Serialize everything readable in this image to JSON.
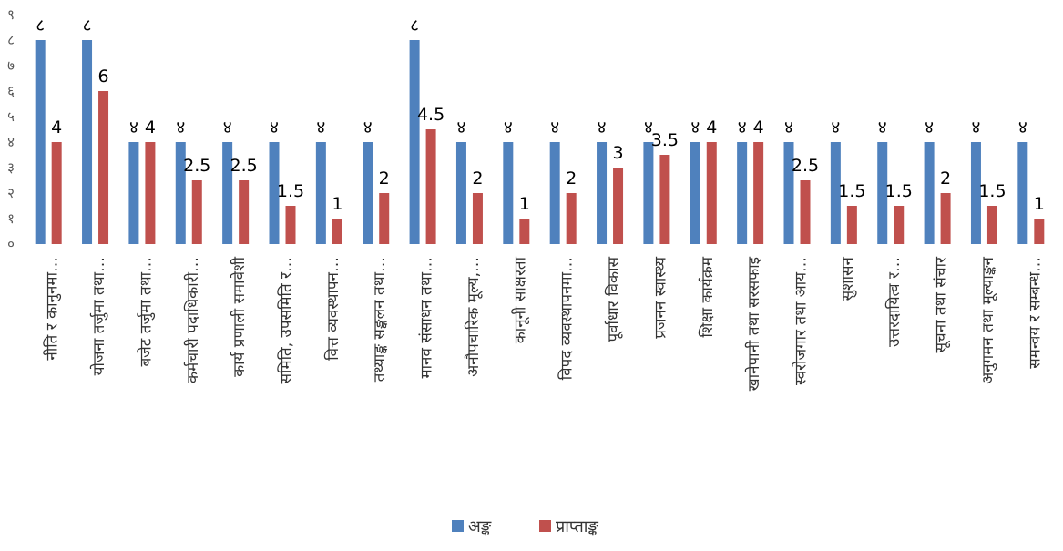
{
  "chart_data": {
    "type": "bar",
    "categories": [
      "नीति र कानुनमा…",
      "योजना तर्जुमा तथा…",
      "बजेट तर्जुमा तथा…",
      "कर्मचारी पदाधिकारी…",
      "कार्य प्रणाली समावेशी",
      "समिति, उपसमिति र…",
      "वित्त व्यवस्थापन…",
      "तथ्याङ्क सङ्कलन तथा…",
      "मानव संसाधन तथा…",
      "अनौपचारिक मूल्य,…",
      "कानूनी साक्षरता",
      "विपद व्यवस्थापनमा…",
      "पूर्वाधार विकास",
      "प्रजनन स्वास्थ्य",
      "शिक्षा कार्यक्रम",
      "खानेपानी तथा सरसफाइ",
      "स्वरोजगार तथा आय…",
      "सुशासन",
      "उत्तरदायित्व र…",
      "सूचना तथा संचार",
      "अनुगमन तथा मूल्याङ्कन",
      "समन्वय र सम्बन्ध…"
    ],
    "series": [
      {
        "name": "अङ्क",
        "color": "#4F81BD",
        "values": [
          8,
          8,
          4,
          4,
          4,
          4,
          4,
          4,
          8,
          4,
          4,
          4,
          4,
          4,
          4,
          4,
          4,
          4,
          4,
          4,
          4,
          4
        ],
        "data_labels": [
          "८",
          "८",
          "४",
          "४",
          "४",
          "४",
          "४",
          "४",
          "८",
          "४",
          "४",
          "४",
          "४",
          "४",
          "४",
          "४",
          "४",
          "४",
          "४",
          "४",
          "४",
          "४"
        ]
      },
      {
        "name": "प्राप्ताङ्क",
        "color": "#C0504D",
        "values": [
          4,
          6,
          4,
          2.5,
          2.5,
          1.5,
          1,
          2,
          4.5,
          2,
          1,
          2,
          3,
          3.5,
          4,
          4,
          2.5,
          1.5,
          1.5,
          2,
          1.5,
          1
        ],
        "data_labels": [
          "4",
          "6",
          "4",
          "2.5",
          "2.5",
          "1.5",
          "1",
          "2",
          "4.5",
          "2",
          "1",
          "2",
          "3",
          "3.5",
          "4",
          "4",
          "2.5",
          "1.5",
          "1.5",
          "2",
          "1.5",
          "1"
        ]
      }
    ],
    "yticks": [
      "०",
      "१",
      "२",
      "३",
      "४",
      "५",
      "६",
      "७",
      "८",
      "९"
    ],
    "ylim": [
      0,
      9
    ],
    "grid": false,
    "legend_position": "bottom"
  }
}
